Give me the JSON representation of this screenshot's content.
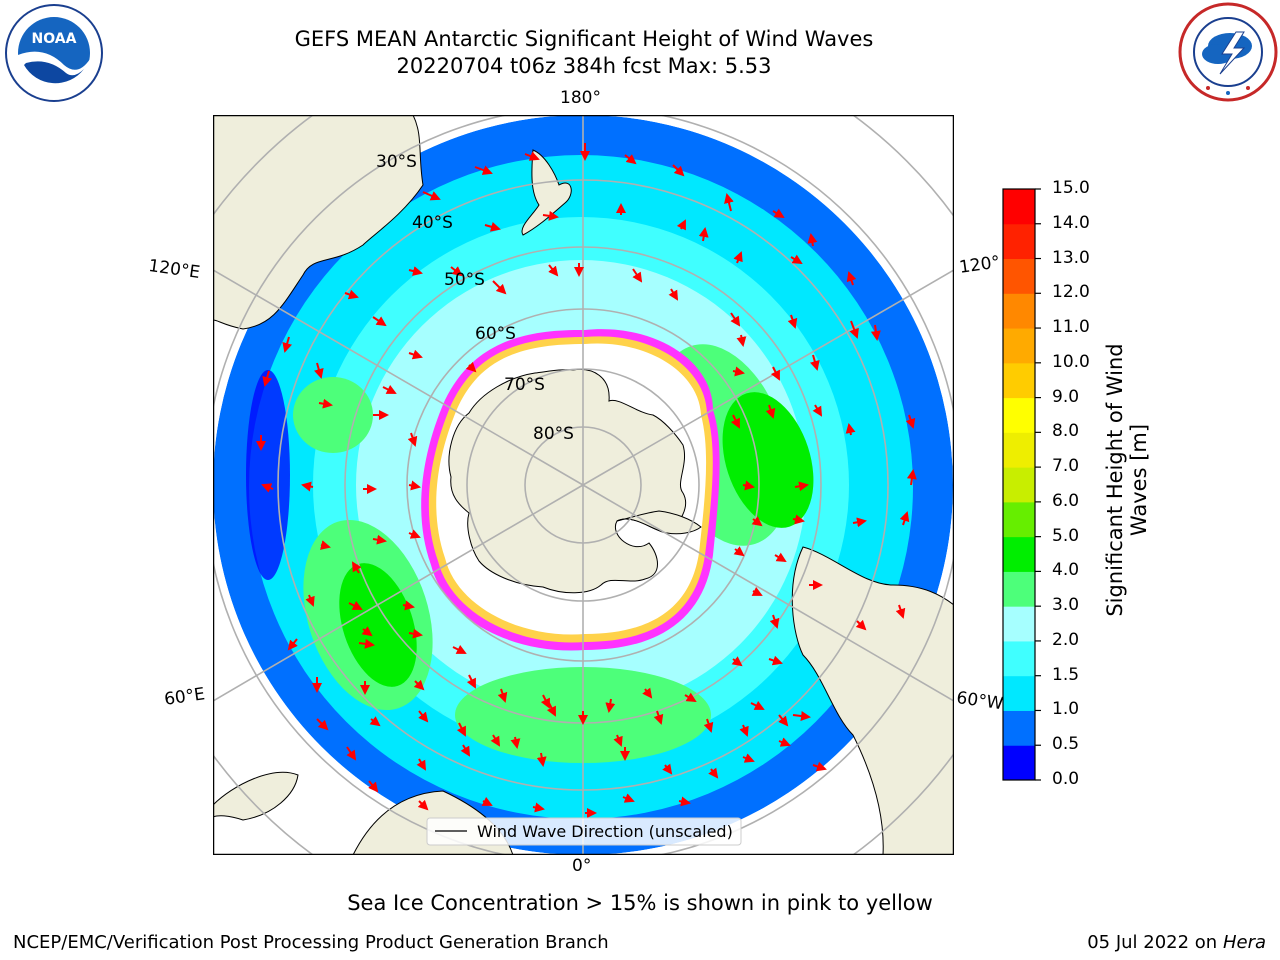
{
  "header": {
    "title_line1": "GEFS MEAN Antarctic Significant Height of Wind Waves",
    "title_line2": "20220704 t06z 384h fcst   Max: 5.53"
  },
  "logos": {
    "left": {
      "icon": "noaa-logo",
      "text": "NOAA"
    },
    "right": {
      "icon": "national-weather-service-logo"
    }
  },
  "map": {
    "projection": "south-polar-stereographic",
    "longitude_labels": {
      "top": "180°",
      "bottom": "0°",
      "left_upper": "120°E",
      "left_lower": "60°E",
      "right_upper": "120°",
      "right_lower": "60°W"
    },
    "latitude_labels": [
      "30°S",
      "40°S",
      "50°S",
      "60°S",
      "70°S",
      "80°S"
    ],
    "legend": "Wind Wave Direction (unscaled)",
    "colors": {
      "land": "#efeedc",
      "ocean_low": "#00ffff",
      "ice": "#ffffff",
      "ice_edge": "#ff33ff",
      "arrows": "#ff0000",
      "grid": "#b0b0b0"
    }
  },
  "colorbar": {
    "label_line1": "Significant Height of Wind",
    "label_line2": "Waves [m]",
    "ticks": [
      "0.0",
      "0.5",
      "1.0",
      "1.5",
      "2.0",
      "3.0",
      "4.0",
      "5.0",
      "6.0",
      "7.0",
      "8.0",
      "9.0",
      "10.0",
      "11.0",
      "12.0",
      "13.0",
      "14.0",
      "15.0"
    ],
    "colors": [
      "#0000ff",
      "#0070ff",
      "#00e8ff",
      "#40ffff",
      "#a6ffff",
      "#4dff7a",
      "#00ee00",
      "#66ee00",
      "#c8ee00",
      "#eeee00",
      "#ffff00",
      "#ffcc00",
      "#ffaa00",
      "#ff8800",
      "#ff5500",
      "#ff2200",
      "#ff0000"
    ]
  },
  "caption": "Sea Ice Concentration > 15% is shown in pink to yellow",
  "footer": {
    "left": "NCEP/EMC/Verification Post Processing Product Generation Branch",
    "date": "05 Jul 2022 on ",
    "host": "Hera"
  }
}
